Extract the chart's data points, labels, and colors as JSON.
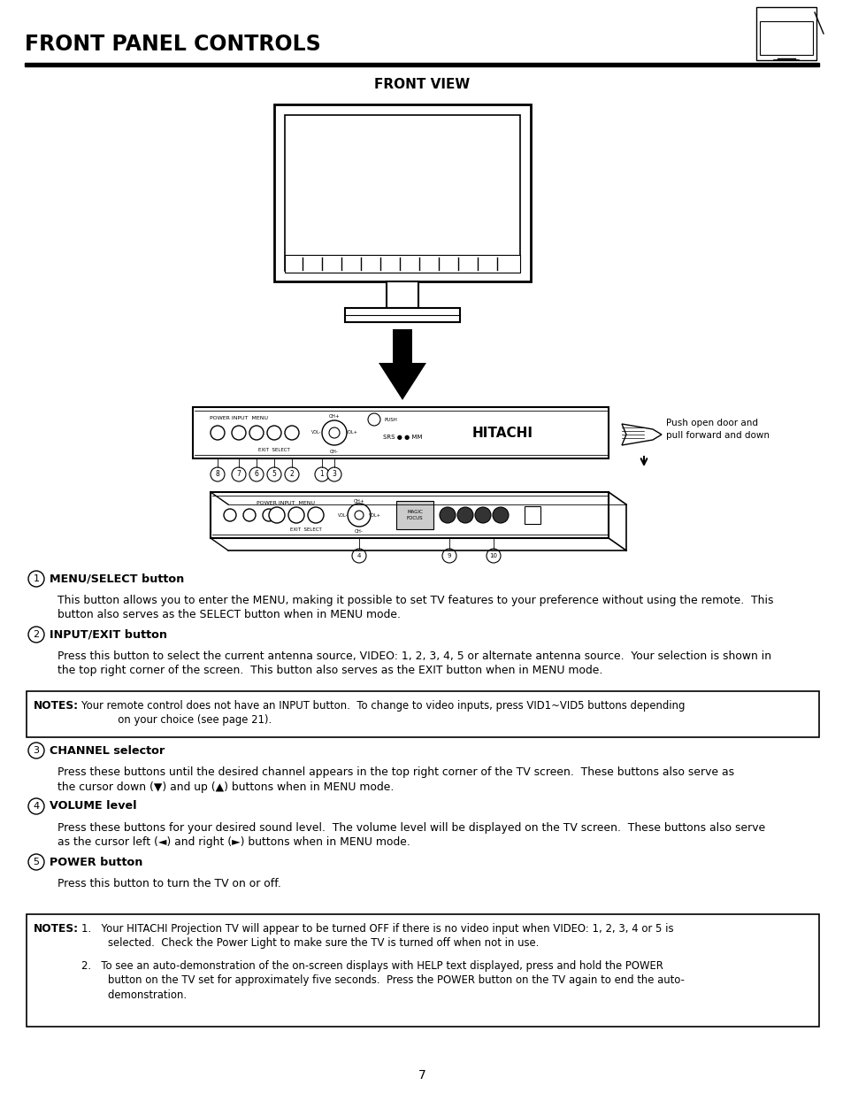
{
  "title": "FRONT PANEL CONTROLS",
  "subtitle": "FRONT VIEW",
  "page_number": "7",
  "bg_color": "#ffffff",
  "title_fontsize": 17,
  "subtitle_fontsize": 11,
  "body_fontsize": 9.2,
  "sections": [
    {
      "num": "1",
      "heading": "MENU/SELECT button",
      "body": "This button allows you to enter the MENU, making it possible to set TV features to your preference without using the remote.  This\nbutton also serves as the SELECT button when in MENU mode."
    },
    {
      "num": "2",
      "heading": "INPUT/EXIT button",
      "body": "Press this button to select the current antenna source, VIDEO: 1, 2, 3, 4, 5 or alternate antenna source.  Your selection is shown in\nthe top right corner of the screen.  This button also serves as the EXIT button when in MENU mode."
    },
    {
      "num": "3",
      "heading": "CHANNEL selector",
      "body": "Press these buttons until the desired channel appears in the top right corner of the TV screen.  These buttons also serve as\nthe cursor down (▼) and up (▲) buttons when in MENU mode."
    },
    {
      "num": "4",
      "heading": "VOLUME level",
      "body": "Press these buttons for your desired sound level.  The volume level will be displayed on the TV screen.  These buttons also serve\nas the cursor left (◄) and right (►) buttons when in MENU mode."
    },
    {
      "num": "5",
      "heading": "POWER button",
      "body": "Press this button to turn the TV on or off."
    }
  ],
  "notes_box1_text": "Your remote control does not have an INPUT button.  To change to video inputs, press VID1~VID5 buttons depending\n           on your choice (see page 21).",
  "notes_box2_items": [
    "1.   Your HITACHI Projection TV will appear to be turned OFF if there is no video input when VIDEO: 1, 2, 3, 4 or 5 is\n        selected.  Check the Power Light to make sure the TV is turned off when not in use.",
    "2.   To see an auto-demonstration of the on-screen displays with HELP text displayed, press and hold the POWER\n        button on the TV set for approximately five seconds.  Press the POWER button on the TV again to end the auto-\n        demonstration."
  ]
}
